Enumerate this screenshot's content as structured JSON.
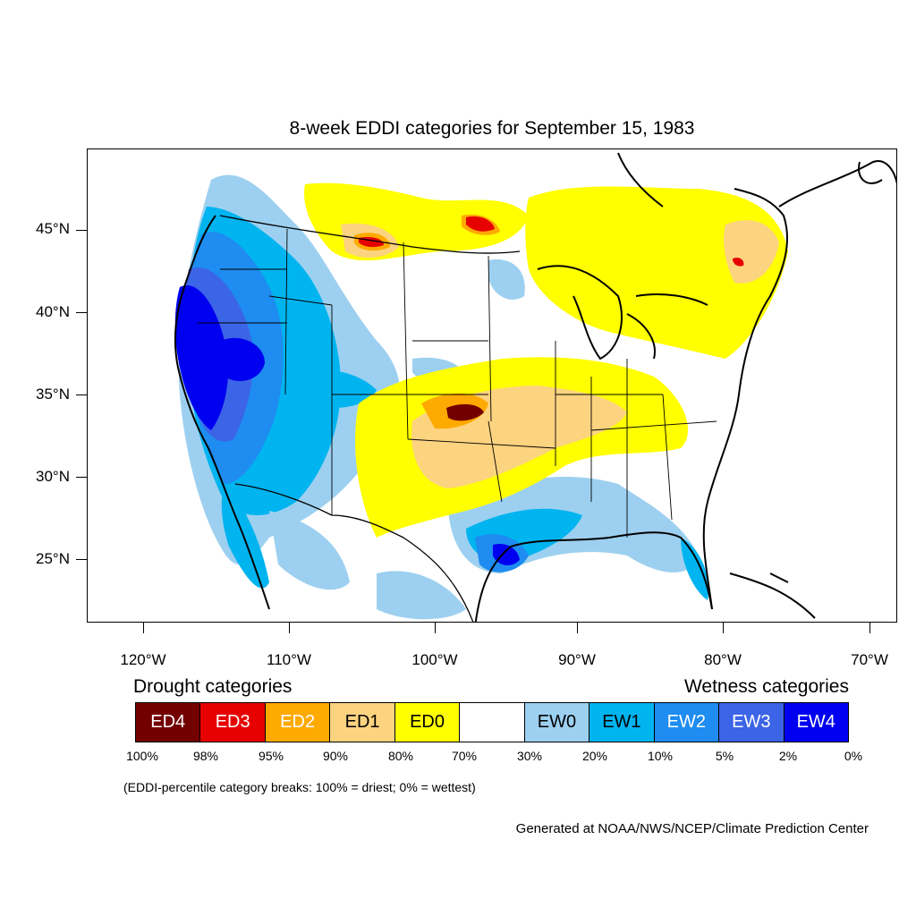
{
  "title": "8-week EDDI categories for September 15, 1983",
  "lat_labels": [
    "45°N",
    "40°N",
    "35°N",
    "30°N",
    "25°N"
  ],
  "lon_labels": [
    "120°W",
    "110°W",
    "100°W",
    "90°W",
    "80°W",
    "70°W"
  ],
  "legend": {
    "drought_heading": "Drought categories",
    "wetness_heading": "Wetness categories",
    "categories": [
      {
        "label": "ED4",
        "color": "#730000",
        "text_color": "#ffffff"
      },
      {
        "label": "ED3",
        "color": "#e60000",
        "text_color": "#ffffff"
      },
      {
        "label": "ED2",
        "color": "#ffaa00",
        "text_color": "#ffffff"
      },
      {
        "label": "ED1",
        "color": "#fcd37f",
        "text_color": "#000000"
      },
      {
        "label": "ED0",
        "color": "#ffff00",
        "text_color": "#000000"
      },
      {
        "label": "",
        "color": "#ffffff",
        "text_color": "#000000"
      },
      {
        "label": "EW0",
        "color": "#9dd0f0",
        "text_color": "#000000"
      },
      {
        "label": "EW1",
        "color": "#00b4f0",
        "text_color": "#000000"
      },
      {
        "label": "EW2",
        "color": "#1e8cf0",
        "text_color": "#ffffff"
      },
      {
        "label": "EW3",
        "color": "#3c64e6",
        "text_color": "#ffffff"
      },
      {
        "label": "EW4",
        "color": "#0000f0",
        "text_color": "#ffffff"
      }
    ],
    "breaks": [
      "100%",
      "98%",
      "95%",
      "90%",
      "80%",
      "70%",
      "30%",
      "20%",
      "10%",
      "5%",
      "2%",
      "0%"
    ]
  },
  "note": "(EDDI-percentile category breaks: 100% = driest; 0% = wettest)",
  "credit": "Generated at NOAA/NWS/NCEP/Climate Prediction Center"
}
